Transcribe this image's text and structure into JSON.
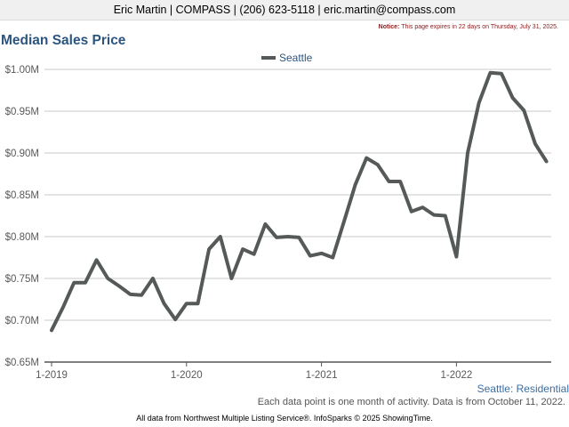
{
  "header": {
    "text": "Eric Martin | COMPASS | (206) 623-5118 | eric.martin@compass.com"
  },
  "notice": {
    "label": "Notice:",
    "text": "This page expires in 22 days on Thursday, July 31, 2025."
  },
  "chart_data": {
    "type": "line",
    "title": "Median Sales Price",
    "xlabel": "",
    "ylabel": "",
    "legend_position": "top-center",
    "grid": true,
    "ylim": [
      0.65,
      1.0
    ],
    "yticks": [
      {
        "value": 0.65,
        "label": "$0.65M"
      },
      {
        "value": 0.7,
        "label": "$0.70M"
      },
      {
        "value": 0.75,
        "label": "$0.75M"
      },
      {
        "value": 0.8,
        "label": "$0.80M"
      },
      {
        "value": 0.85,
        "label": "$0.85M"
      },
      {
        "value": 0.9,
        "label": "$0.90M"
      },
      {
        "value": 0.95,
        "label": "$0.95M"
      },
      {
        "value": 1.0,
        "label": "$1.00M"
      }
    ],
    "xticks": [
      {
        "value": "2019-01",
        "label": "1-2019"
      },
      {
        "value": "2020-01",
        "label": "1-2020"
      },
      {
        "value": "2021-01",
        "label": "1-2021"
      },
      {
        "value": "2022-01",
        "label": "1-2022"
      }
    ],
    "x_range": [
      "2019-01",
      "2022-09"
    ],
    "color": "#555a58",
    "series": [
      {
        "name": "Seattle",
        "x": [
          "2019-01",
          "2019-02",
          "2019-03",
          "2019-04",
          "2019-05",
          "2019-06",
          "2019-07",
          "2019-08",
          "2019-09",
          "2019-10",
          "2019-11",
          "2019-12",
          "2020-01",
          "2020-02",
          "2020-03",
          "2020-04",
          "2020-05",
          "2020-06",
          "2020-07",
          "2020-08",
          "2020-09",
          "2020-10",
          "2020-11",
          "2020-12",
          "2021-01",
          "2021-02",
          "2021-03",
          "2021-04",
          "2021-05",
          "2021-06",
          "2021-07",
          "2021-08",
          "2021-09",
          "2021-10",
          "2021-11",
          "2021-12",
          "2022-01",
          "2022-02",
          "2022-03",
          "2022-04",
          "2022-05",
          "2022-06",
          "2022-07",
          "2022-08",
          "2022-09"
        ],
        "values": [
          0.688,
          0.715,
          0.745,
          0.745,
          0.772,
          0.75,
          0.741,
          0.731,
          0.73,
          0.75,
          0.72,
          0.701,
          0.72,
          0.72,
          0.785,
          0.8,
          0.75,
          0.785,
          0.779,
          0.815,
          0.799,
          0.8,
          0.799,
          0.777,
          0.78,
          0.775,
          0.818,
          0.862,
          0.894,
          0.886,
          0.866,
          0.866,
          0.83,
          0.835,
          0.826,
          0.825,
          0.776,
          0.9,
          0.96,
          0.996,
          0.995,
          0.966,
          0.951,
          0.911,
          0.89
        ]
      }
    ]
  },
  "corner_label": "Seattle: Residential",
  "note": "Each data point is one month of activity. Data is from October 11, 2022.",
  "footer": "All data from Northwest Multiple Listing Service®. InfoSparks © 2025 ShowingTime."
}
